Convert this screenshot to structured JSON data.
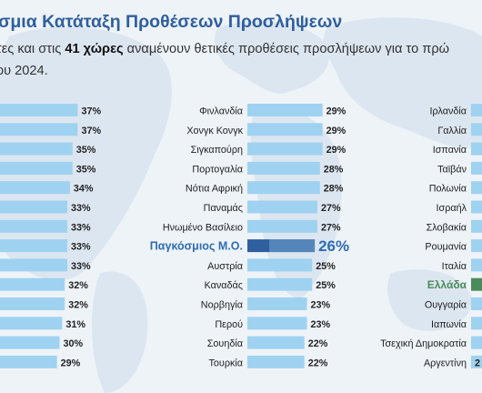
{
  "header": {
    "title": "σμια Κατάταξη Προθέσεων Προσλήψεων",
    "line1_pre": "τες και στις ",
    "line1_bold": "41 χώρες",
    "line1_post": " αναμένουν θετικές προθέσεις προσλήψεων για το πρώ",
    "line2": "ου 2024."
  },
  "colors": {
    "bar": "#9fd2f1",
    "global_bar": "#2f5f9e",
    "global_text": "#2f6db5",
    "greece": "#4a8b5a",
    "greece_text": "#4a8b5a",
    "title": "#2f5f9e"
  },
  "chart_data": {
    "type": "bar",
    "orientation": "horizontal",
    "unit": "%",
    "columns": [
      {
        "items": [
          {
            "label": "",
            "value": 37
          },
          {
            "label": "",
            "value": 37
          },
          {
            "label": "",
            "value": 35
          },
          {
            "label": "",
            "value": 35
          },
          {
            "label": "",
            "value": 34
          },
          {
            "label": "",
            "value": 33
          },
          {
            "label": "",
            "value": 33
          },
          {
            "label": "",
            "value": 33
          },
          {
            "label": "",
            "value": 33
          },
          {
            "label": "",
            "value": 32
          },
          {
            "label": "",
            "value": 32
          },
          {
            "label": "",
            "value": 31
          },
          {
            "label": "",
            "value": 30
          },
          {
            "label": "",
            "value": 29
          }
        ]
      },
      {
        "items": [
          {
            "label": "Φινλανδία",
            "value": 29
          },
          {
            "label": "Χονγκ Κονγκ",
            "value": 29
          },
          {
            "label": "Σιγκαπούρη",
            "value": 29
          },
          {
            "label": "Πορτογαλία",
            "value": 28
          },
          {
            "label": "Νότια Αφρική",
            "value": 28
          },
          {
            "label": "Παναμάς",
            "value": 27
          },
          {
            "label": "Ηνωμένο Βασίλειο",
            "value": 27
          },
          {
            "label": "Παγκόσμιος Μ.Ο.",
            "value": 26,
            "highlight": "global"
          },
          {
            "label": "Αυστρία",
            "value": 25
          },
          {
            "label": "Καναδάς",
            "value": 25
          },
          {
            "label": "Νορβηγία",
            "value": 23
          },
          {
            "label": "Περού",
            "value": 23
          },
          {
            "label": "Σουηδία",
            "value": 22
          },
          {
            "label": "Τουρκία",
            "value": 22
          }
        ]
      },
      {
        "items": [
          {
            "label": "Ιρλανδία",
            "value": null
          },
          {
            "label": "Γαλλία",
            "value": null
          },
          {
            "label": "Ισπανία",
            "value": null
          },
          {
            "label": "Ταϊβάν",
            "value": null
          },
          {
            "label": "Πολωνία",
            "value": null
          },
          {
            "label": "Ισραήλ",
            "value": null
          },
          {
            "label": "Σλοβακία",
            "value": null
          },
          {
            "label": "Ρουμανία",
            "value": null
          },
          {
            "label": "Ιταλία",
            "value": null
          },
          {
            "label": "Ελλάδα",
            "value": null,
            "highlight": "greece"
          },
          {
            "label": "Ουγγαρία",
            "value": null
          },
          {
            "label": "Ιαπωνία",
            "value": null
          },
          {
            "label": "Τσεχική Δημοκρατία",
            "value": null
          },
          {
            "label": "Αργεντίνη",
            "value": null,
            "partial_value_label": "2"
          }
        ]
      }
    ]
  }
}
